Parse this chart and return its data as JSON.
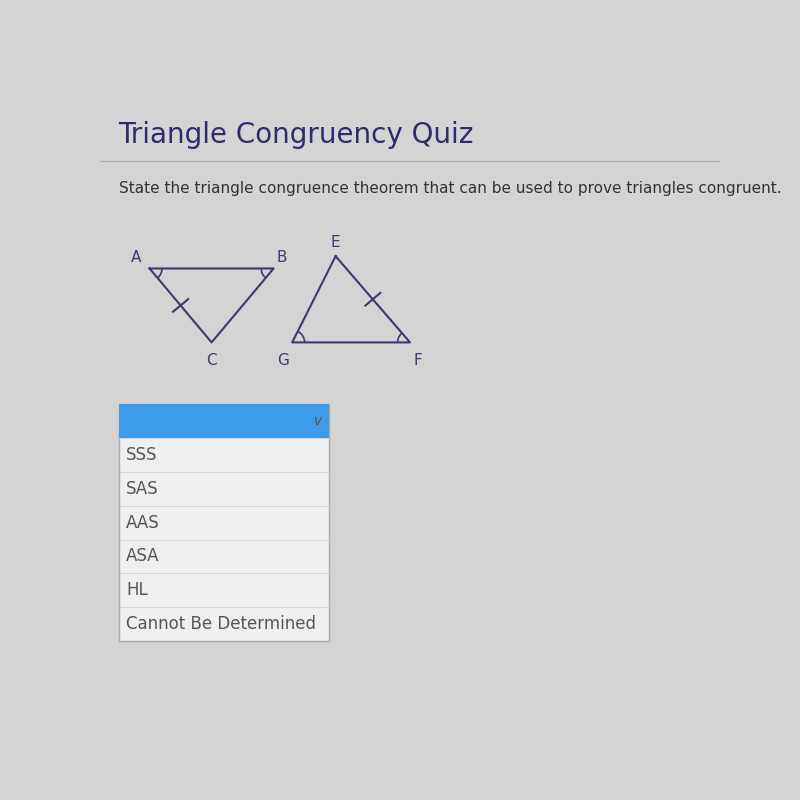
{
  "title": "Triangle Congruency Quiz",
  "question": "State the triangle congruence theorem that can be used to prove triangles congruent.",
  "bg_color": "#d4d4d4",
  "title_color": "#2c2c6e",
  "question_color": "#333333",
  "dropdown_options": [
    "",
    "SSS",
    "SAS",
    "AAS",
    "ASA",
    "HL",
    "Cannot Be Determined"
  ],
  "dropdown_highlight_color": "#3d9be9",
  "dropdown_text_color": "#555555",
  "dropdown_border_color": "#aaaaaa",
  "tri1": {
    "A": [
      0.08,
      0.72
    ],
    "B": [
      0.28,
      0.72
    ],
    "C": [
      0.18,
      0.6
    ]
  },
  "tri2": {
    "E": [
      0.38,
      0.74
    ],
    "G": [
      0.31,
      0.6
    ],
    "F": [
      0.5,
      0.6
    ]
  }
}
